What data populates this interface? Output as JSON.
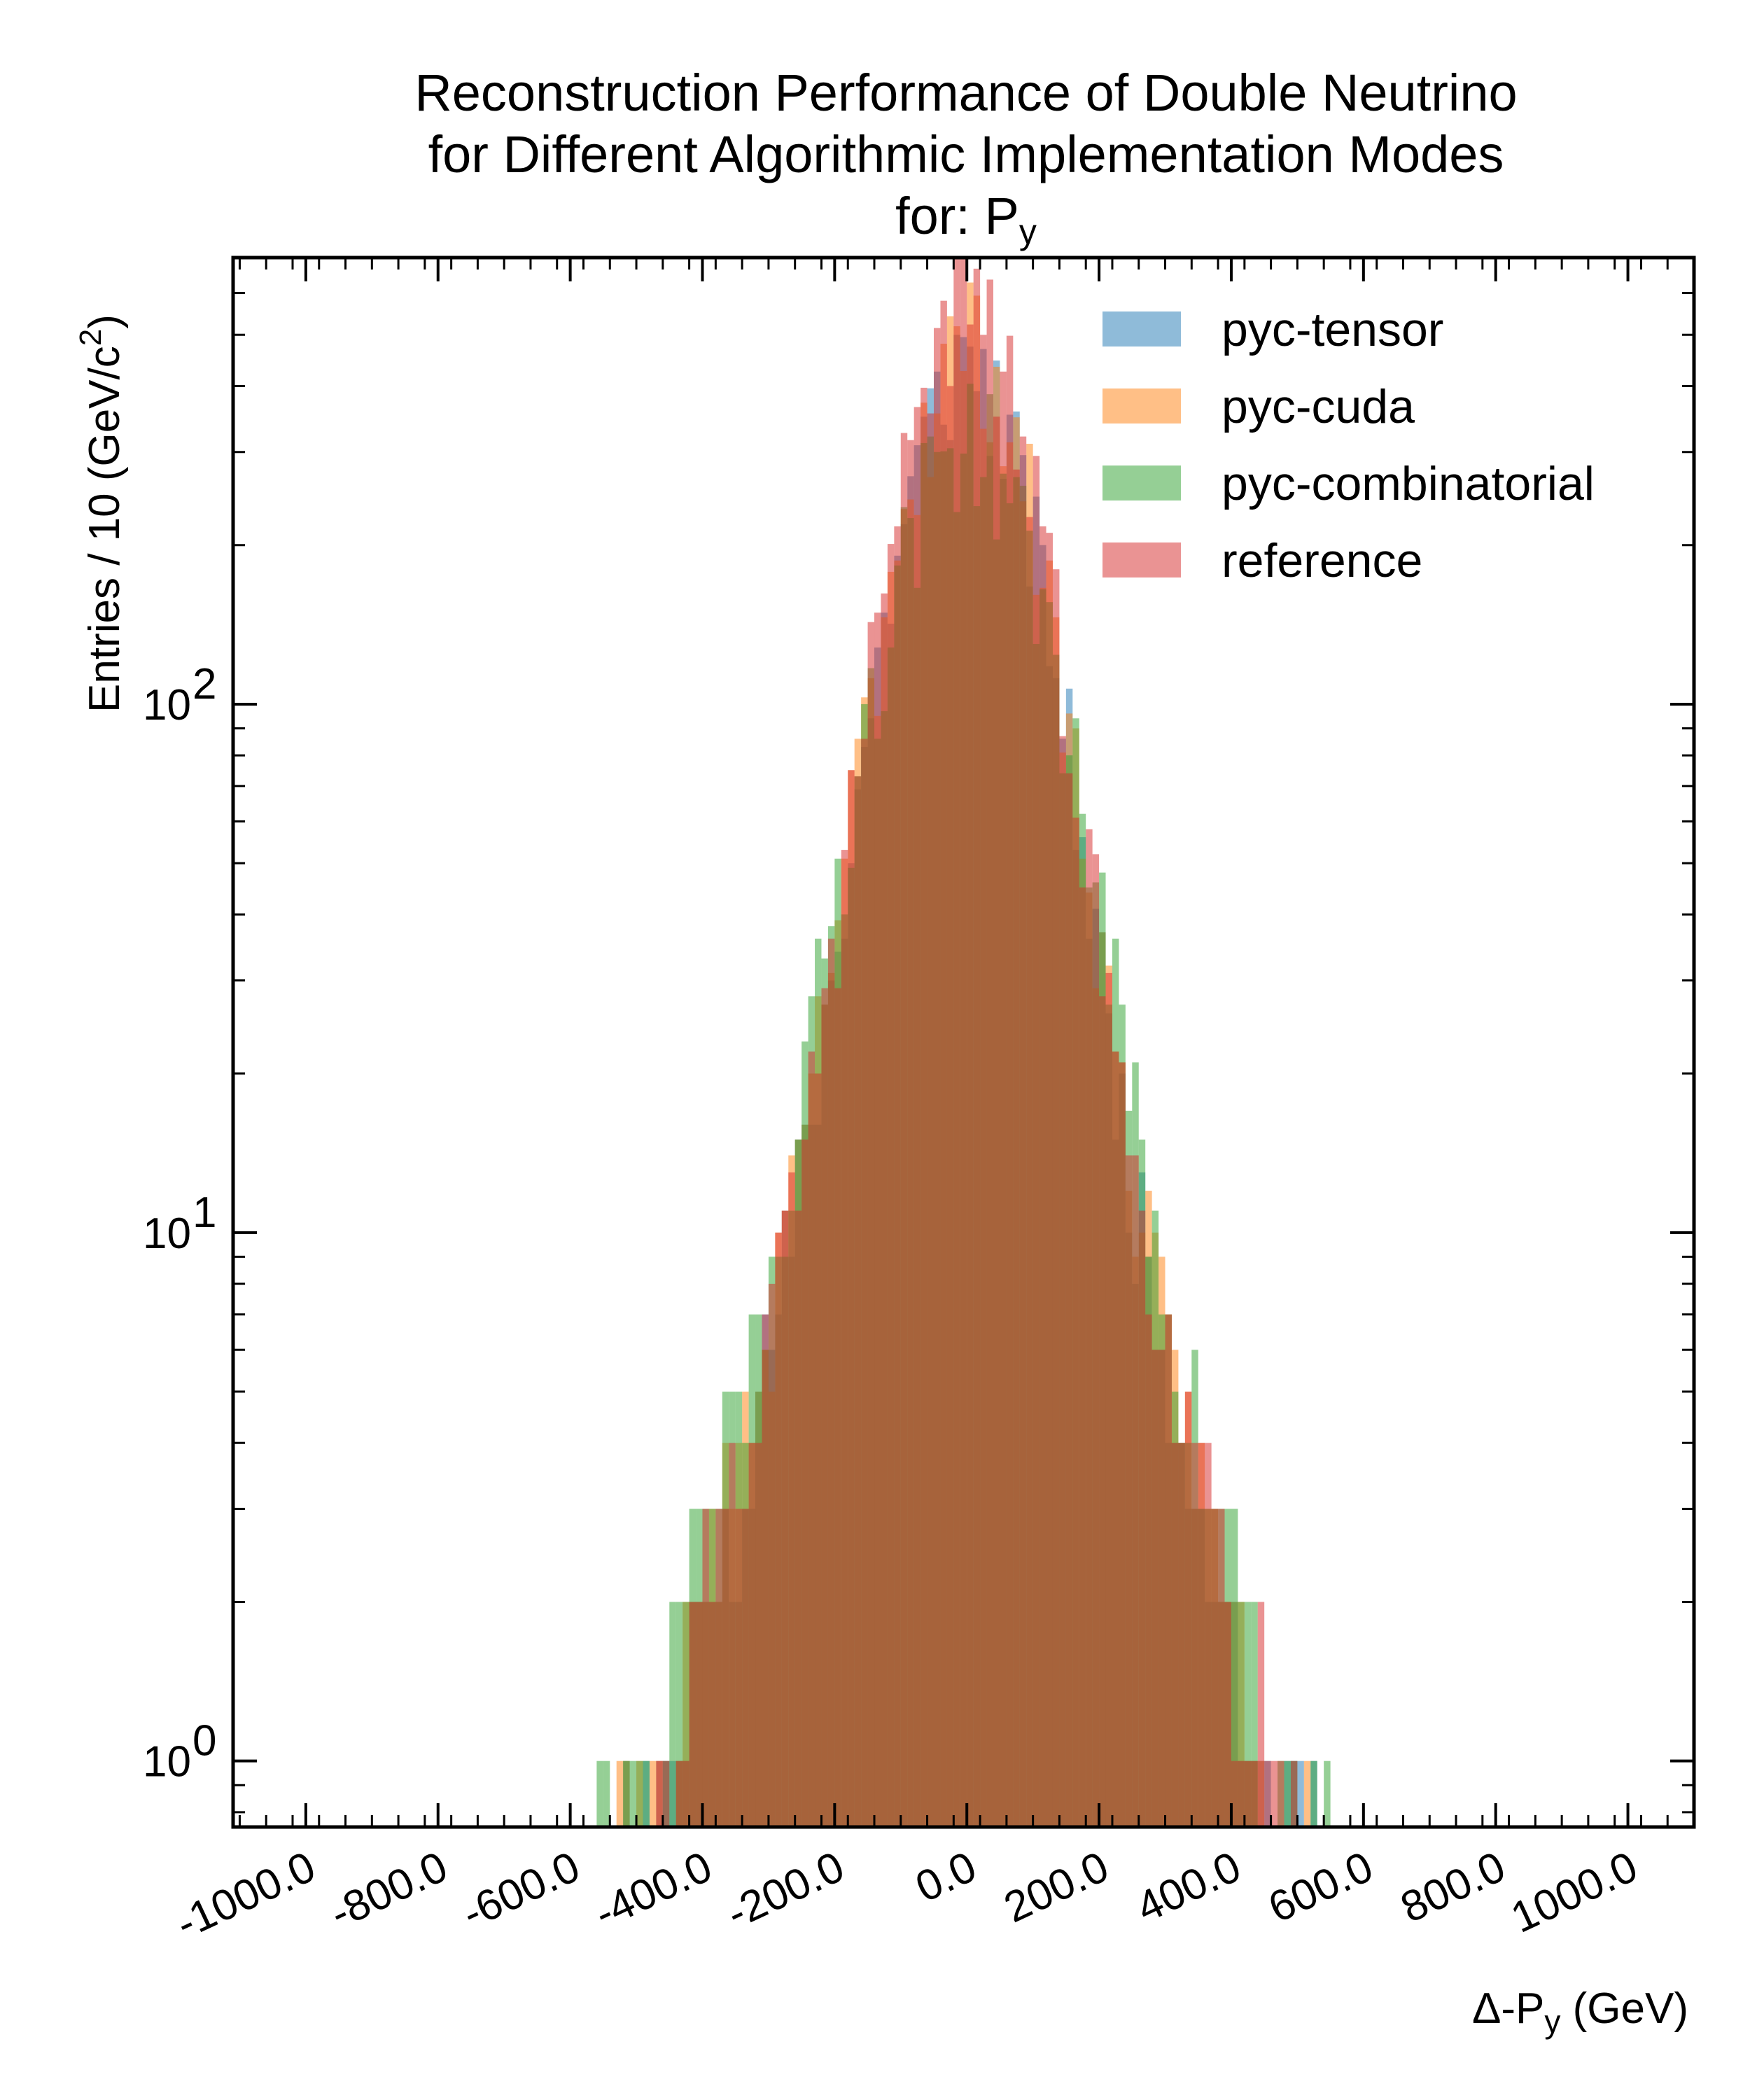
{
  "chart_data": {
    "type": "histogram",
    "title_lines": [
      "Reconstruction Performance of Double Neutrino",
      "for Different Algorithmic Implementation Modes"
    ],
    "title_line3": {
      "prefix": "for: P",
      "sub": "y"
    },
    "xlabel": {
      "prefix": "Δ-P",
      "sub": "y",
      "suffix": " (GeV)"
    },
    "ylabel": {
      "text": "Entries  / 10 (GeV/c",
      "sup": "2",
      "close": ")"
    },
    "x_ticks": [
      "-1000.0",
      "-800.0",
      "-600.0",
      "-400.0",
      "-200.0",
      "0.0",
      "200.0",
      "400.0",
      "600.0",
      "800.0",
      "1000.0"
    ],
    "x_tick_values": [
      -1000,
      -800,
      -600,
      -400,
      -200,
      0,
      200,
      400,
      600,
      800,
      1000
    ],
    "xlim": [
      -1110,
      1100
    ],
    "yscale": "log",
    "ylim": [
      0.75,
      700
    ],
    "y_ticks": [
      {
        "value": 1,
        "base": "10",
        "exp": "0"
      },
      {
        "value": 10,
        "base": "10",
        "exp": "1"
      },
      {
        "value": 100,
        "base": "10",
        "exp": "2"
      }
    ],
    "bin_width": 10,
    "legend_position": "top-right",
    "series": [
      {
        "name": "pyc-tensor",
        "color": "#1f77b4",
        "sigma": 150,
        "peak": 330,
        "seed": 11
      },
      {
        "name": "pyc-cuda",
        "color": "#ff7f0e",
        "sigma": 150,
        "peak": 360,
        "seed": 23
      },
      {
        "name": "pyc-combinatorial",
        "color": "#2ca02c",
        "sigma": 175,
        "peak": 240,
        "seed": 37
      },
      {
        "name": "reference",
        "color": "#d62728",
        "sigma": 145,
        "peak": 420,
        "seed": 53
      }
    ]
  }
}
